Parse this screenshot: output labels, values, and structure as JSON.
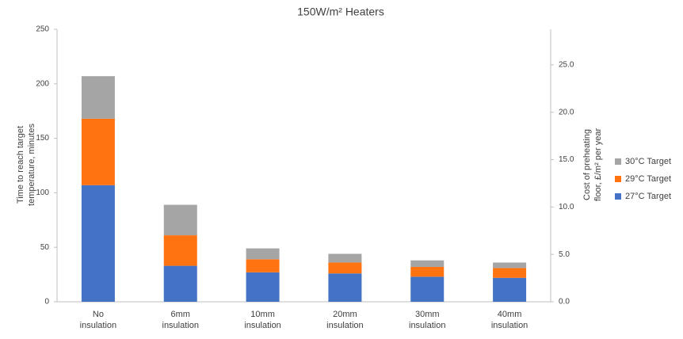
{
  "chart_data": {
    "type": "stacked_bar",
    "title": "150W/m² Heaters",
    "categories": [
      "No\ninsulation",
      "6mm\ninsulation",
      "10mm\ninsulation",
      "20mm\ninsulation",
      "30mm\ninsulation",
      "40mm\ninsulation"
    ],
    "series": [
      {
        "name": "27°C Target",
        "color": "#4472c4",
        "values": [
          107,
          33,
          27,
          26,
          23,
          22
        ]
      },
      {
        "name": "29°C Target",
        "color": "#ff7410",
        "values": [
          61,
          28,
          12,
          10,
          9,
          9
        ]
      },
      {
        "name": "30°C Target",
        "color": "#a5a5a5",
        "values": [
          39,
          28,
          10,
          8,
          6,
          5
        ]
      }
    ],
    "y_label": "Time to reach target\ntemperature, minutes",
    "y2_label": "Cost of preheating\nfloor, £/m² per year",
    "ylim": [
      0,
      250
    ],
    "yticks": [
      0,
      50,
      100,
      150,
      200,
      250
    ],
    "y2lim": [
      0,
      28.75
    ],
    "y2ticks": [
      {
        "value": 0,
        "label": "0.0"
      },
      {
        "value": 5,
        "label": "5.0"
      },
      {
        "value": 10,
        "label": "10.0"
      },
      {
        "value": 15,
        "label": "15.0"
      },
      {
        "value": 20,
        "label": "20.0"
      },
      {
        "value": 25,
        "label": "25.0"
      }
    ],
    "grid": false,
    "legend": "right"
  }
}
